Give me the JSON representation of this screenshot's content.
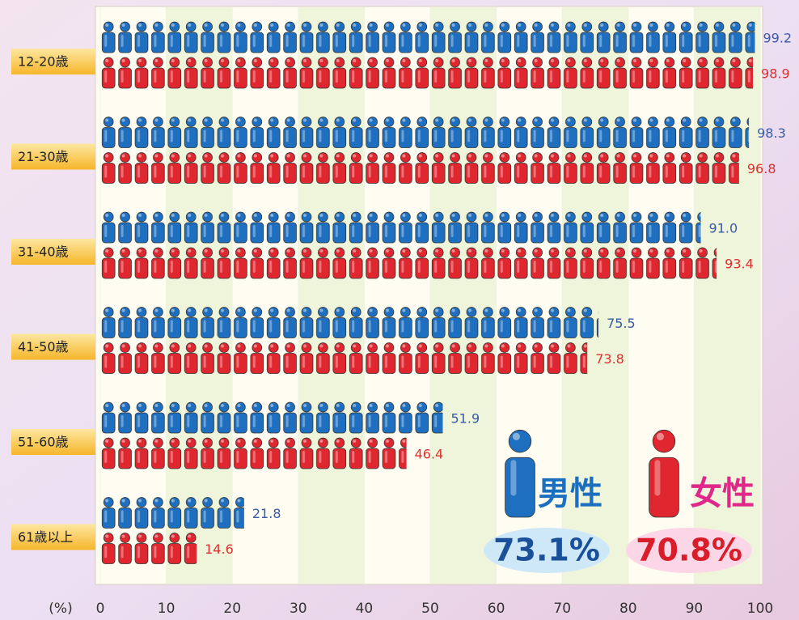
{
  "chart_data": {
    "type": "pictograph-bar",
    "xlabel": "(%)",
    "categories": [
      "12-20歳",
      "21-30歳",
      "31-40歳",
      "41-50歳",
      "51-60歳",
      "61歳以上"
    ],
    "series": [
      {
        "name": "男性",
        "color": "#1f6fc0",
        "values": [
          99.2,
          98.3,
          91.0,
          75.5,
          51.9,
          21.8
        ],
        "value_labels": [
          "99.2",
          "98.3",
          "91.0",
          "75.5",
          "51.9",
          "21.8"
        ],
        "total": "73.1%"
      },
      {
        "name": "女性",
        "color": "#e0262e",
        "values": [
          98.9,
          96.8,
          93.4,
          73.8,
          46.4,
          14.6
        ],
        "value_labels": [
          "98.9",
          "96.8",
          "93.4",
          "73.8",
          "46.4",
          "14.6"
        ],
        "total": "70.8%"
      }
    ],
    "xlim": [
      0,
      100
    ],
    "xticks": [
      0,
      10,
      20,
      30,
      40,
      50,
      60,
      70,
      80,
      90,
      100
    ]
  }
}
